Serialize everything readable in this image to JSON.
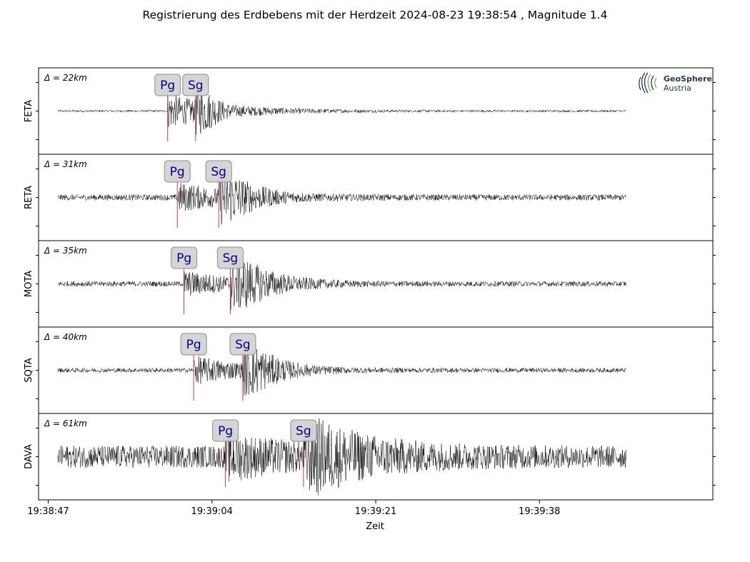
{
  "title": "Registrierung des Erdbebens mit der Herdzeit 2024-08-23 19:38:54 , Magnitude 1.4",
  "logo": {
    "name": "GeoSphere",
    "sub": "Austria",
    "icon": "geosphere-logo-icon",
    "color": "#1f3b4d"
  },
  "chart_data": {
    "type": "line",
    "title": "Registrierung des Erdbebens mit der Herdzeit 2024-08-23 19:38:54 , Magnitude 1.4",
    "xlabel": "Zeit",
    "x_range": [
      "19:38:46",
      "19:39:56"
    ],
    "x_ticks": [
      "19:38:47",
      "19:39:04",
      "19:39:21",
      "19:39:38"
    ],
    "trace_start": "19:38:48",
    "trace_end": "19:39:47",
    "trace_color": "#000000",
    "pick_color": "#d62728",
    "grid": false,
    "stations": [
      {
        "name": "FETA",
        "distance": "Δ = 22km",
        "Pg": "19:38:59.4",
        "Sg": "19:39:02.3",
        "noise": 0.03,
        "p_amp": 0.45,
        "s_amp": 1.0,
        "coda": 2.0
      },
      {
        "name": "RETA",
        "distance": "Δ = 31km",
        "Pg": "19:39:00.4",
        "Sg": "19:39:04.7",
        "noise": 0.08,
        "p_amp": 0.35,
        "s_amp": 1.0,
        "coda": 3.0
      },
      {
        "name": "MOTA",
        "distance": "Δ = 35km",
        "Pg": "19:39:01.1",
        "Sg": "19:39:05.9",
        "noise": 0.07,
        "p_amp": 0.3,
        "s_amp": 1.0,
        "coda": 3.5
      },
      {
        "name": "SQTA",
        "distance": "Δ = 40km",
        "Pg": "19:39:02.1",
        "Sg": "19:39:07.2",
        "noise": 0.06,
        "p_amp": 0.35,
        "s_amp": 1.0,
        "coda": 3.0
      },
      {
        "name": "DAVA",
        "distance": "Δ = 61km",
        "Pg": "19:39:05.4",
        "Sg": "19:39:13.5",
        "noise": 0.3,
        "p_amp": 0.45,
        "s_amp": 1.0,
        "coda": 6.0
      }
    ]
  }
}
